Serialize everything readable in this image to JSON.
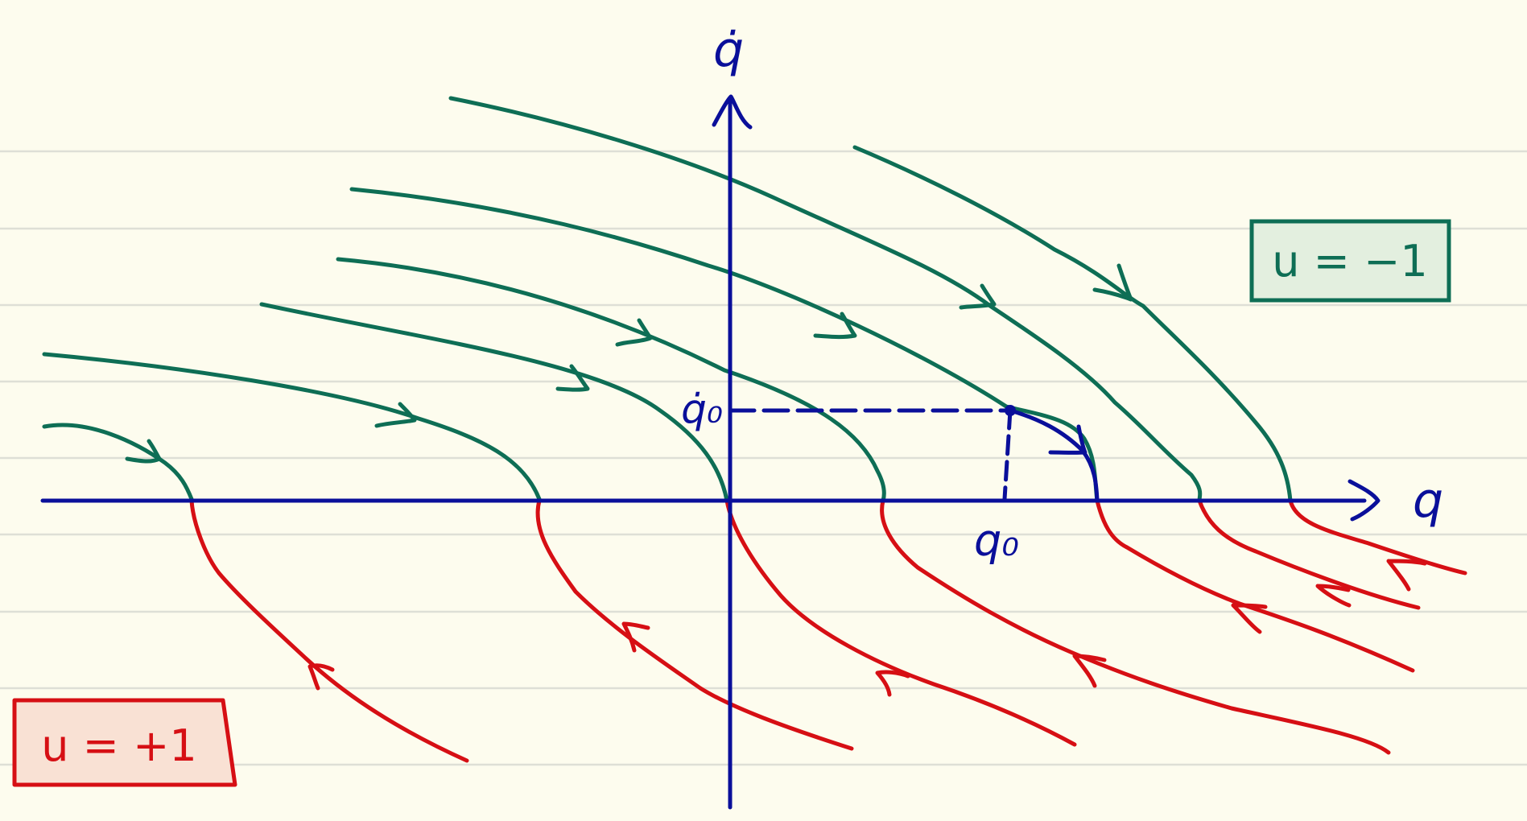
{
  "diagram": {
    "axes": {
      "x_label": "q",
      "y_label": "q̇"
    },
    "markers": {
      "q0_label": "q₀",
      "q0dot_label": "q̇₀"
    },
    "legend": {
      "upper": {
        "text": "u = −1",
        "color": "#0e6e55",
        "fill": "#e3efdf"
      },
      "lower": {
        "text": "u = +1",
        "color": "#d60f14",
        "fill": "#f9e1d4"
      }
    },
    "colors": {
      "paper": "#fdfcee",
      "rule_lines": "#dedfd6",
      "axis": "#0a0f9a",
      "trajectory_u_minus": "#0e6e55",
      "trajectory_u_plus": "#d60f14"
    }
  }
}
